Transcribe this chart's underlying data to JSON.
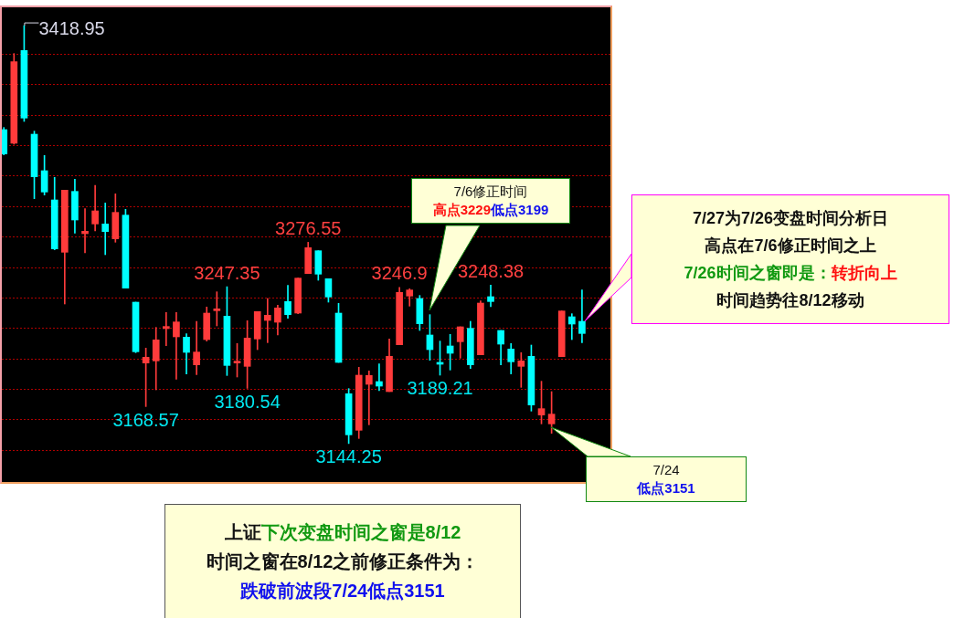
{
  "chart_data": {
    "type": "candlestick",
    "categories": [
      null,
      null,
      null,
      null,
      null,
      null,
      null,
      null,
      null,
      null,
      null,
      null,
      null,
      null,
      null,
      null,
      null,
      null,
      null,
      null,
      null,
      null,
      null,
      null,
      null,
      null,
      null,
      null,
      null,
      null,
      null,
      null,
      null,
      null,
      null,
      null,
      null,
      null,
      null,
      null,
      null,
      null,
      null,
      null,
      null,
      null,
      null,
      null,
      null,
      null,
      null,
      null,
      null,
      null,
      null,
      null,
      null,
      null
    ],
    "ohlc": [
      [
        3350.6,
        3352,
        3334,
        3334.6
      ],
      [
        3341.6,
        3400.6,
        3341,
        3395.2
      ],
      [
        3402.6,
        3418.95,
        3356,
        3358.2
      ],
      [
        3347.6,
        3349.6,
        3305.2,
        3319.6
      ],
      [
        3323.6,
        3333.6,
        3307.6,
        3309.6
      ],
      [
        3304.4,
        3319.2,
        3271.6,
        3272.2
      ],
      [
        3270,
        3310.8,
        3236,
        3310.8
      ],
      [
        3310,
        3318,
        3282.6,
        3291.2
      ],
      [
        3282.2,
        3298.6,
        3269.6,
        3283.8
      ],
      [
        3288.6,
        3314,
        3284,
        3297.2
      ],
      [
        3288.6,
        3302.4,
        3268.4,
        3283.6
      ],
      [
        3278.8,
        3308.4,
        3276.6,
        3296.2
      ],
      [
        3294.4,
        3298.2,
        3246.4,
        3246.4
      ],
      [
        3237.2,
        3237.2,
        3204,
        3204.6
      ],
      [
        3197.2,
        3207,
        3168.57,
        3201
      ],
      [
        3198.6,
        3220.6,
        3179.6,
        3212.4
      ],
      [
        3219.8,
        3230.4,
        3208.6,
        3221.2
      ],
      [
        3214.4,
        3230.4,
        3186.6,
        3224.2
      ],
      [
        3214.2,
        3216.4,
        3190,
        3204.2
      ],
      [
        3196,
        3224.6,
        3189.6,
        3204.4
      ],
      [
        3212.6,
        3234,
        3211.6,
        3230
      ],
      [
        3231.6,
        3244,
        3221.6,
        3232.4
      ],
      [
        3228,
        3247.35,
        3189,
        3195.6
      ],
      [
        3197.2,
        3210,
        3188,
        3198
      ],
      [
        3195,
        3225,
        3180.54,
        3213.6
      ],
      [
        3213,
        3231,
        3206,
        3231
      ],
      [
        3225.2,
        3239.6,
        3210.6,
        3228.6
      ],
      [
        3224,
        3235.2,
        3215.6,
        3233.4
      ],
      [
        3237.6,
        3248.2,
        3226.6,
        3229
      ],
      [
        3230,
        3253,
        3229.6,
        3253
      ],
      [
        3256,
        3276.55,
        3256,
        3273
      ],
      [
        3271,
        3271,
        3251.6,
        3255.6
      ],
      [
        3252.6,
        3252.6,
        3237.2,
        3240.6
      ],
      [
        3230,
        3236.4,
        3197.6,
        3197.6
      ],
      [
        3177,
        3180.4,
        3144.25,
        3150
      ],
      [
        3153,
        3194.4,
        3147.6,
        3189.2
      ],
      [
        3183.2,
        3192,
        3156.6,
        3189
      ],
      [
        3185,
        3196.6,
        3179,
        3182
      ],
      [
        3178.4,
        3213,
        3178.4,
        3201.6
      ],
      [
        3209.2,
        3246.9,
        3209.2,
        3243.6
      ],
      [
        3241.2,
        3246,
        3234.6,
        3245.2
      ],
      [
        3239.6,
        3241.6,
        3218.6,
        3223
      ],
      [
        3215.6,
        3229,
        3199,
        3206
      ],
      [
        3197.2,
        3211.6,
        3189.21,
        3196.4
      ],
      [
        3208.4,
        3216,
        3192.6,
        3203.6
      ],
      [
        3211.2,
        3221,
        3200.4,
        3221
      ],
      [
        3220,
        3224.6,
        3193.6,
        3196
      ],
      [
        3202.6,
        3238,
        3202.6,
        3236.6
      ],
      [
        3240.8,
        3248.38,
        3234.2,
        3237.6
      ],
      [
        3218.6,
        3218.6,
        3196,
        3209.6
      ],
      [
        3206.4,
        3210,
        3190,
        3198
      ],
      [
        3195,
        3204,
        3181.2,
        3198.6
      ],
      [
        3201.6,
        3209,
        3165.6,
        3169.6
      ],
      [
        3163,
        3185.2,
        3157.2,
        3167.2
      ],
      [
        3157.2,
        3178.4,
        3151,
        3163.6
      ],
      [
        3201.4,
        3231.4,
        3201.4,
        3231.4
      ],
      [
        3227.6,
        3229.6,
        3212.6,
        3222.8
      ],
      [
        3224.6,
        3245.2,
        3210.6,
        3216.6
      ]
    ],
    "colors": [
      "#00ffff",
      "#ff3b3b",
      "#00ffff",
      "#00ffff",
      "#00ffff",
      "#00ffff",
      "#ff3b3b",
      "#00ffff",
      "#ff3b3b",
      "#ff3b3b",
      "#00ffff",
      "#ff3b3b",
      "#00ffff",
      "#00ffff",
      "#ff3b3b",
      "#ff3b3b",
      "#ff3b3b",
      "#ff3b3b",
      "#00ffff",
      "#ff3b3b",
      "#ff3b3b",
      "#ff3b3b",
      "#00ffff",
      "#ff3b3b",
      "#ff3b3b",
      "#ff3b3b",
      "#ff3b3b",
      "#ff3b3b",
      "#00ffff",
      "#ff3b3b",
      "#ff3b3b",
      "#00ffff",
      "#00ffff",
      "#00ffff",
      "#00ffff",
      "#ff3b3b",
      "#ff3b3b",
      "#00ffff",
      "#ff3b3b",
      "#ff3b3b",
      "#ff3b3b",
      "#00ffff",
      "#00ffff",
      "#00ffff",
      "#00ffff",
      "#ff3b3b",
      "#00ffff",
      "#ff3b3b",
      "#00ffff",
      "#00ffff",
      "#00ffff",
      "#ff3b3b",
      "#00ffff",
      "#ff3b3b",
      "#ff3b3b",
      "#ff3b3b",
      "#00ffff",
      "#00ffff"
    ],
    "ylim": [
      3119,
      3431
    ],
    "yticks": [
      {
        "value": 3140,
        "label": null
      },
      {
        "value": 3160,
        "label": null
      },
      {
        "value": 3180,
        "label": null
      },
      {
        "value": 3200,
        "label": null
      },
      {
        "value": 3220,
        "label": null
      },
      {
        "value": 3240,
        "label": null
      },
      {
        "value": 3260,
        "label": null
      },
      {
        "value": 3280,
        "label": null
      },
      {
        "value": 3300,
        "label": null
      },
      {
        "value": 3320,
        "label": null
      },
      {
        "value": 3340,
        "label": null
      },
      {
        "value": 3360,
        "label": null
      },
      {
        "value": 3380,
        "label": null
      },
      {
        "value": 3400,
        "label": null
      }
    ],
    "grid": "y",
    "tick_labels": false,
    "legend": false,
    "annotations": [
      "3418.95",
      {
        "text": "3276.55",
        "y": 3276.55
      },
      {
        "text": "3247.35",
        "y": 3247.35
      },
      {
        "text": "3246.9",
        "y": 3246.9
      },
      {
        "text": "3248.38",
        "y": 3248.38
      },
      {
        "text": "3168.57",
        "y": 3168.57
      },
      {
        "text": "3180.54",
        "y": 3180.54
      },
      {
        "text": "3144.25",
        "y": 3144.25
      },
      {
        "text": "3189.21",
        "y": 3189.21
      },
      "7/6修正时间",
      "高点3229",
      "低点3199",
      "7/27为7/26变盘时间分析日",
      "高点在7/6修正时间之上",
      "7/26时间之窗即是：",
      "转折向上",
      "时间趋势往8/12移动",
      "7/24",
      "低点3151",
      "上证",
      "下次变盘时间之窗是8/12",
      "时间之窗在8/12之前修正条件为：",
      "跌破前波段7/24低点3151"
    ]
  }
}
